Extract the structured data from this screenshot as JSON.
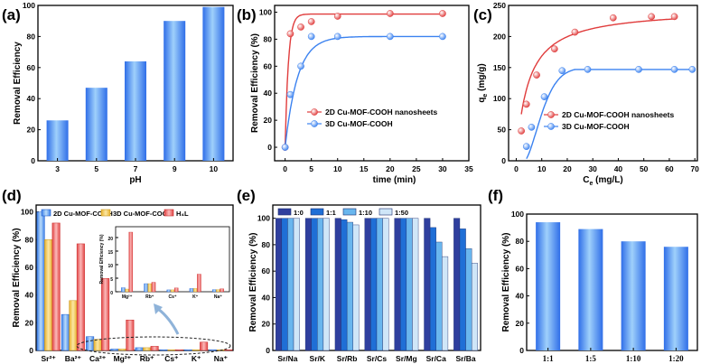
{
  "colors": {
    "blue": "#3b82f0",
    "blue_light": "#8ec8f7",
    "red": "#e03c3c",
    "red_light": "#f6a3a3",
    "yellow": "#f2c94c",
    "cyan": "#5aaef0",
    "sr_0": "#2f3f9e",
    "sr_1": "#1f6fd6",
    "sr_10": "#69b6ee",
    "sr_50": "#cfe6f8",
    "axis": "#000000"
  },
  "chart_data": [
    {
      "id": "a",
      "panel_label": "(a)",
      "type": "bar",
      "categories": [
        "3",
        "5",
        "7",
        "9",
        "10"
      ],
      "values": [
        26,
        47,
        64,
        90,
        99
      ],
      "xlabel": "pH",
      "ylabel": "Removal Efficiency",
      "ylim": [
        0,
        100
      ],
      "yticks": [
        "0",
        "20",
        "40",
        "60",
        "80",
        "100"
      ]
    },
    {
      "id": "b",
      "panel_label": "(b)",
      "type": "line",
      "xlabel": "time (min)",
      "ylabel": "Removal Efficiency (%)",
      "xlim": [
        -2,
        35
      ],
      "ylim": [
        -10,
        105
      ],
      "xticks": [
        "0",
        "5",
        "10",
        "15",
        "20",
        "25",
        "30",
        "35"
      ],
      "yticks": [
        "0",
        "20",
        "40",
        "60",
        "80",
        "100"
      ],
      "series": [
        {
          "name": "2D Cu-MOF-COOH nanosheets",
          "x": [
            0,
            1,
            3,
            5,
            10,
            20,
            30
          ],
          "y": [
            0,
            84,
            89,
            93,
            97,
            99,
            99
          ]
        },
        {
          "name": "3D Cu-MOF-COOH",
          "x": [
            0,
            1,
            3,
            5,
            10,
            20,
            30
          ],
          "y": [
            0,
            39,
            60,
            82,
            82,
            82,
            82
          ]
        }
      ]
    },
    {
      "id": "c",
      "panel_label": "(c)",
      "type": "scatter",
      "xlabel_main": "C",
      "xlabel_sub": "e",
      "xlabel_rest": " (mg/L)",
      "ylabel_main": "q",
      "ylabel_sub": "e",
      "ylabel_rest": " (mg/g)",
      "xlim": [
        -3,
        71
      ],
      "ylim": [
        0,
        250
      ],
      "xticks": [
        "0",
        "10",
        "20",
        "30",
        "40",
        "50",
        "60",
        "70"
      ],
      "yticks": [
        "0",
        "50",
        "100",
        "150",
        "200",
        "250"
      ],
      "series": [
        {
          "name": "2D Cu-MOF-COOH nanosheets",
          "x": [
            2,
            4,
            8,
            15,
            23,
            38,
            53,
            62
          ],
          "y": [
            48,
            91,
            138,
            180,
            207,
            230,
            232,
            232
          ]
        },
        {
          "name": "3D Cu-MOF-COOH",
          "x": [
            4,
            6,
            11,
            18,
            28,
            48,
            62,
            69
          ],
          "y": [
            23,
            54,
            103,
            145,
            147,
            147,
            147,
            147
          ]
        }
      ]
    },
    {
      "id": "d",
      "panel_label": "(d)",
      "type": "grouped_bar",
      "categories": [
        "Sr²⁺",
        "Ba²⁺",
        "Ca²⁺",
        "Mg²⁺",
        "Rb⁺",
        "Cs⁺",
        "K⁺",
        "Na⁺"
      ],
      "ylabel": "Removal Efficiency (%)",
      "ylim": [
        0,
        105
      ],
      "yticks": [
        "0",
        "20",
        "40",
        "60",
        "80",
        "100"
      ],
      "series": [
        {
          "name": "2D Cu-MOF-COOH",
          "values": [
            100,
            26,
            10,
            1,
            2,
            0.5,
            0.5,
            0.5
          ]
        },
        {
          "name": "3D Cu-MOF-COOH",
          "values": [
            80,
            36,
            8,
            1,
            2,
            0.5,
            0.5,
            0.5
          ]
        },
        {
          "name": "H₄L",
          "values": [
            92,
            77,
            52,
            22,
            3,
            0.5,
            6,
            0.5
          ]
        }
      ],
      "inset": {
        "categories": [
          "Mg²⁺",
          "Rb⁺",
          "Cs⁺",
          "K⁺",
          "Na⁺"
        ],
        "ylabel": "Removal Efficiency (%)",
        "ylim": [
          0,
          24
        ],
        "yticks": [
          "0",
          "5",
          "10",
          "15",
          "20"
        ],
        "series": [
          {
            "name": "2D Cu-MOF-COOH",
            "values": [
              1.5,
              3,
              0.7,
              1.2,
              0.8
            ]
          },
          {
            "name": "3D Cu-MOF-COOH",
            "values": [
              1.0,
              3,
              0.7,
              1.2,
              0.8
            ]
          },
          {
            "name": "H₄L",
            "values": [
              22,
              3.5,
              1.4,
              6.5,
              1.1
            ]
          }
        ]
      }
    },
    {
      "id": "e",
      "panel_label": "(e)",
      "type": "grouped_bar",
      "categories": [
        "Sr/Na",
        "Sr/K",
        "Sr/Rb",
        "Sr/Cs",
        "Sr/Mg",
        "Sr/Ca",
        "Sr/Ba"
      ],
      "ylabel": "Removal Efficiency (%)",
      "ylim": [
        0,
        110
      ],
      "yticks": [
        "0",
        "20",
        "40",
        "60",
        "80",
        "100"
      ],
      "series": [
        {
          "name": "1:0",
          "values": [
            100,
            100,
            100,
            100,
            100,
            100,
            100
          ]
        },
        {
          "name": "1:1",
          "values": [
            100,
            100,
            99,
            100,
            100,
            93,
            92
          ]
        },
        {
          "name": "1:10",
          "values": [
            100,
            100,
            97,
            100,
            100,
            82,
            77
          ]
        },
        {
          "name": "1:50",
          "values": [
            100,
            100,
            95,
            100,
            100,
            71,
            66
          ]
        }
      ]
    },
    {
      "id": "f",
      "panel_label": "(f)",
      "type": "bar",
      "categories": [
        "1:1",
        "1:5",
        "1:10",
        "1:20"
      ],
      "values": [
        94,
        89,
        80,
        76
      ],
      "ylabel": "Removal Efficiency (%)",
      "ylim": [
        0,
        100
      ],
      "yticks": [
        "0",
        "20",
        "40",
        "60",
        "80",
        "100"
      ]
    }
  ]
}
